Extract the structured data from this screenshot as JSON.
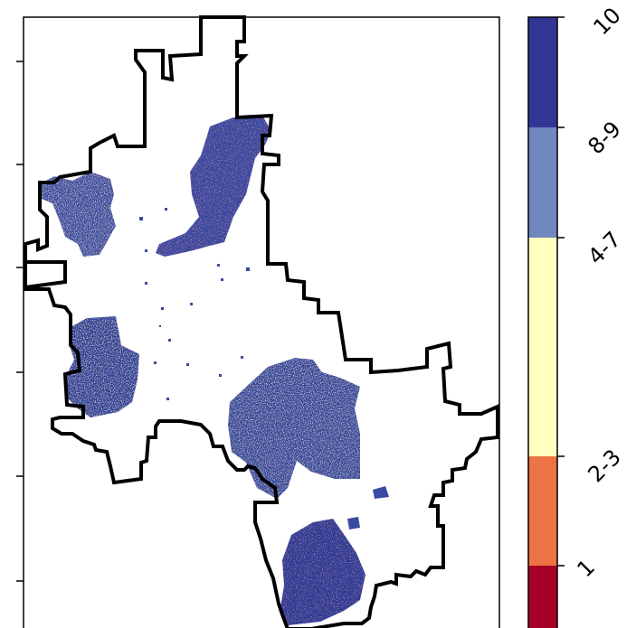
{
  "map": {
    "boundary": "city-boundary",
    "has_frame": true,
    "left_axis_tick_count": 6
  },
  "legend": {
    "type": "discrete-colorbar",
    "orientation": "vertical",
    "items": [
      {
        "label": "10",
        "color": "#313695"
      },
      {
        "label": "8-9",
        "color": "#7087c0"
      },
      {
        "label": "4-7",
        "color": "#ffffc0"
      },
      {
        "label": "2-3",
        "color": "#ec7345"
      },
      {
        "label": "1",
        "color": "#a50026"
      }
    ]
  }
}
